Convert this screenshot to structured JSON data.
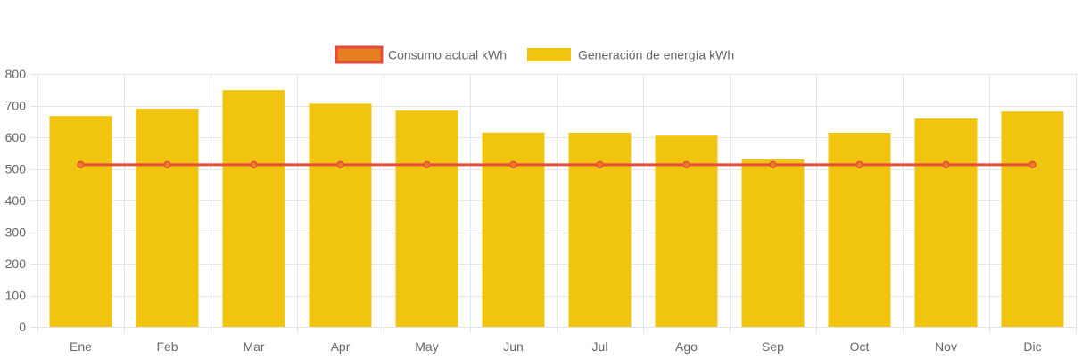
{
  "chart_data": {
    "type": "bar",
    "categories": [
      "Ene",
      "Feb",
      "Mar",
      "Apr",
      "May",
      "Jun",
      "Jul",
      "Ago",
      "Sep",
      "Oct",
      "Nov",
      "Dic"
    ],
    "series": [
      {
        "name": "Consumo actual kWh",
        "type": "line",
        "values": [
          513,
          513,
          513,
          513,
          513,
          513,
          513,
          513,
          513,
          513,
          513,
          513
        ]
      },
      {
        "name": "Generación de energía kWh",
        "type": "bar",
        "values": [
          667,
          690,
          749,
          706,
          684,
          615,
          614,
          605,
          530,
          614,
          659,
          681
        ]
      }
    ],
    "ylim": [
      0,
      800
    ],
    "yticks": [
      "0",
      "100",
      "200",
      "300",
      "400",
      "500",
      "600",
      "700",
      "800"
    ],
    "grid": true,
    "legend_position": "top",
    "colors": {
      "line_stroke": "#e74c3c",
      "line_fill": "#e67e22",
      "bar_fill": "#f1c40f",
      "grid": "#e5e5e5",
      "text": "#666666"
    }
  }
}
